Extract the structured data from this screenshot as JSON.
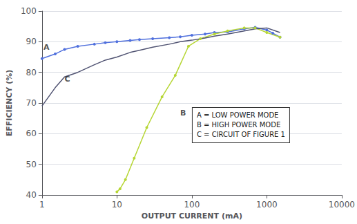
{
  "chart_data": {
    "type": "line",
    "xlabel": "OUTPUT CURRENT (mA)",
    "ylabel": "EFFICIENCY (%)",
    "log": "x",
    "xlim": [
      1,
      10000
    ],
    "xticks": [
      1,
      10,
      100,
      1000,
      10000
    ],
    "ylim": [
      40,
      100
    ],
    "yticks": [
      40,
      50,
      60,
      70,
      80,
      90,
      100
    ],
    "grid": true,
    "series": [
      {
        "x": [
          1,
          1.5,
          2,
          3,
          5,
          7,
          10,
          15,
          20,
          30,
          50,
          70,
          100,
          150,
          200,
          300,
          500,
          700,
          1000,
          1200,
          1500
        ],
        "values": [
          84.5,
          86,
          87.5,
          88.5,
          89.2,
          89.7,
          90.0,
          90.4,
          90.7,
          91.0,
          91.3,
          91.6,
          92.1,
          92.5,
          93.0,
          93.2,
          94.2,
          94.7,
          93.8,
          92.8,
          91.5
        ],
        "marker": "circle"
      },
      {
        "x": [
          10,
          11,
          13,
          17,
          25,
          40,
          60,
          90,
          130,
          200,
          300,
          500,
          700,
          1000,
          1500
        ],
        "values": [
          41.0,
          42.0,
          45.0,
          52.0,
          62.0,
          72.0,
          79.0,
          88.5,
          91.0,
          92.5,
          93.5,
          94.5,
          94.5,
          93.0,
          91.5
        ],
        "marker": "circle"
      },
      {
        "x": [
          1,
          1.5,
          2,
          3,
          5,
          7,
          10,
          15,
          20,
          30,
          50,
          70,
          100,
          150,
          200,
          300,
          500,
          700,
          1000,
          1500
        ],
        "values": [
          69.0,
          75.0,
          78.5,
          80.0,
          82.5,
          84.0,
          85.0,
          86.5,
          87.2,
          88.2,
          89.2,
          90.0,
          90.5,
          91.2,
          91.8,
          92.5,
          93.5,
          94.2,
          94.5,
          93.0
        ],
        "marker": "none"
      }
    ],
    "annotations": [
      {
        "text": "A",
        "x": 1.05,
        "y": 87.0
      },
      {
        "text": "B",
        "x": 70,
        "y": 65.5
      },
      {
        "text": "C",
        "x": 2.0,
        "y": 76.5
      },
      {
        "text": "A = LOW POWER MODE\nB = HIGH POWER MODE\nC = CIRCUIT OF FIGURE 1"
      }
    ]
  }
}
